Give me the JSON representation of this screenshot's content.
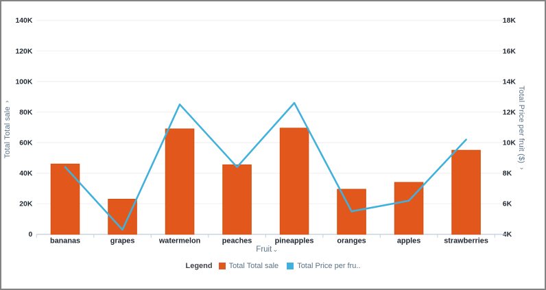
{
  "colors": {
    "bar": "#e2571c",
    "bar_stroke": "#d24f12",
    "line": "#3fb1dc",
    "grid": "#f6f1f2",
    "axis_line": "#c9d5e0",
    "tick_text": "#222a33",
    "title_text": "#5a7187",
    "widget_border": "#838383"
  },
  "icons": {
    "chevron_down": "⌄"
  },
  "chart_data": {
    "type": "bar",
    "subtype": "combo-bar-line-dual-axis",
    "title": "",
    "categories": [
      "bananas",
      "grapes",
      "watermelon",
      "peaches",
      "pineapples",
      "oranges",
      "apples",
      "strawberries"
    ],
    "series": [
      {
        "name": "Total Total sale",
        "legend_label": "Total Total sale",
        "chart": "bar",
        "axis": "left",
        "color": "#e2571c",
        "values": [
          46000,
          23000,
          69000,
          45500,
          69500,
          29500,
          34000,
          55000
        ]
      },
      {
        "name": "Total Price per fruit ($)",
        "legend_label": "Total Price per fru..",
        "chart": "line",
        "axis": "right",
        "color": "#3fb1dc",
        "values": [
          8400,
          4300,
          12500,
          8400,
          12600,
          5500,
          6200,
          10200
        ]
      }
    ],
    "left_axis": {
      "title": "Total Total sale",
      "min": 0,
      "max": 140000,
      "tick_step": 20000,
      "ticks": [
        "0",
        "20K",
        "40K",
        "60K",
        "80K",
        "100K",
        "120K",
        "140K"
      ]
    },
    "right_axis": {
      "title": "Total Price per fruit ($)",
      "min": 4000,
      "max": 18000,
      "tick_step": 2000,
      "ticks": [
        "4K",
        "6K",
        "8K",
        "10K",
        "12K",
        "14K",
        "16K",
        "18K"
      ]
    },
    "x_axis": {
      "title": "Fruit"
    },
    "legend": {
      "label": "Legend",
      "position": "bottom"
    },
    "grid": "horizontal"
  }
}
